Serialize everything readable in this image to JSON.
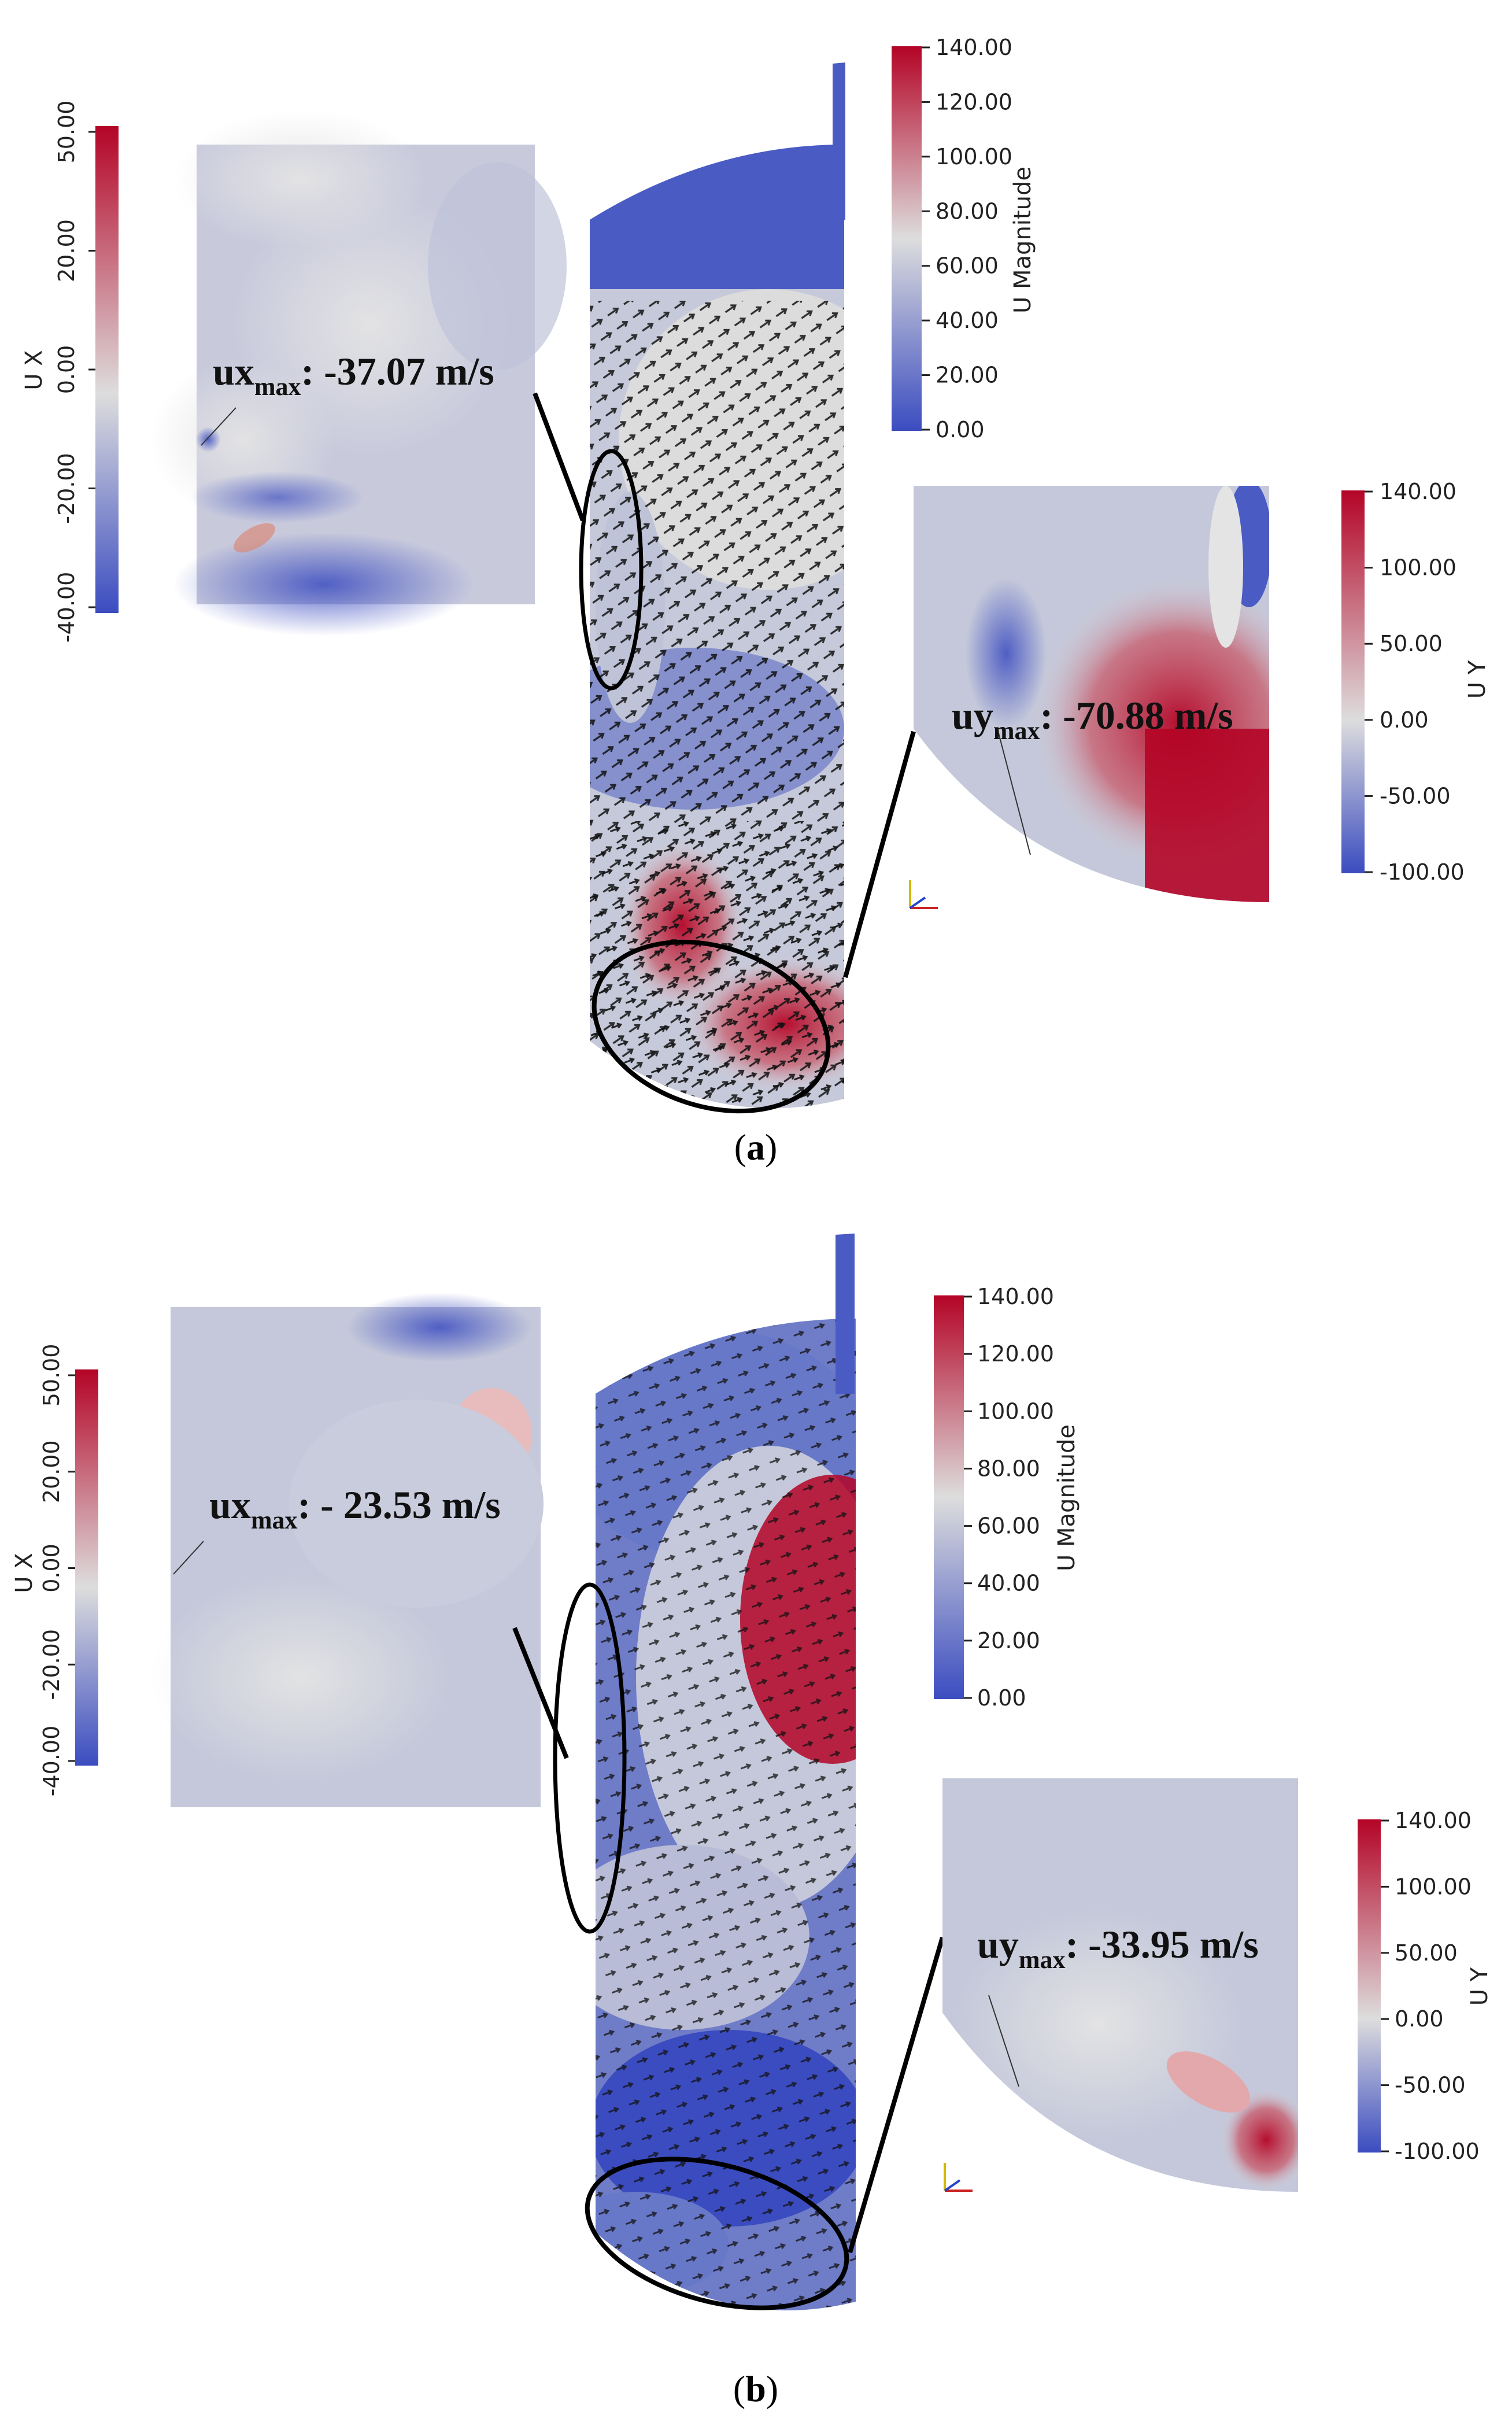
{
  "panels": [
    {
      "caption_open": "(",
      "caption_letter": "a",
      "caption_close": ")",
      "ux_colorbar": {
        "title": "U X",
        "ticks": [
          "50.00",
          "20.00",
          "0.00",
          "-20.00",
          "-40.00"
        ]
      },
      "umag_colorbar": {
        "title": "U Magnitude",
        "ticks": [
          "140.00",
          "120.00",
          "100.00",
          "80.00",
          "60.00",
          "40.00",
          "20.00",
          "0.00"
        ]
      },
      "uy_colorbar": {
        "title": "U Y",
        "ticks": [
          "140.00",
          "100.00",
          "50.00",
          "0.00",
          "-50.00",
          "-100.00"
        ]
      },
      "ux_annotation": {
        "main": "ux",
        "sub": "max",
        "value": ": -37.07 m/s"
      },
      "uy_annotation": {
        "main": "uy",
        "sub": "max",
        "value": ": -70.88 m/s"
      }
    },
    {
      "caption_open": "(",
      "caption_letter": "b",
      "caption_close": ")",
      "ux_colorbar": {
        "title": "U X",
        "ticks": [
          "50.00",
          "20.00",
          "0.00",
          "-20.00",
          "-40.00"
        ]
      },
      "umag_colorbar": {
        "title": "U Magnitude",
        "ticks": [
          "140.00",
          "120.00",
          "100.00",
          "80.00",
          "60.00",
          "40.00",
          "20.00",
          "0.00"
        ]
      },
      "uy_colorbar": {
        "title": "U Y",
        "ticks": [
          "140.00",
          "100.00",
          "50.00",
          "0.00",
          "-50.00",
          "-100.00"
        ]
      },
      "ux_annotation": {
        "main": "ux",
        "sub": "max",
        "value": ": - 23.53 m/s"
      },
      "uy_annotation": {
        "main": "uy",
        "sub": "max",
        "value": ": -33.95 m/s"
      }
    }
  ],
  "colors": {
    "cool": "#3b4cc0",
    "neutral": "#dddddd",
    "warm": "#b40426"
  }
}
